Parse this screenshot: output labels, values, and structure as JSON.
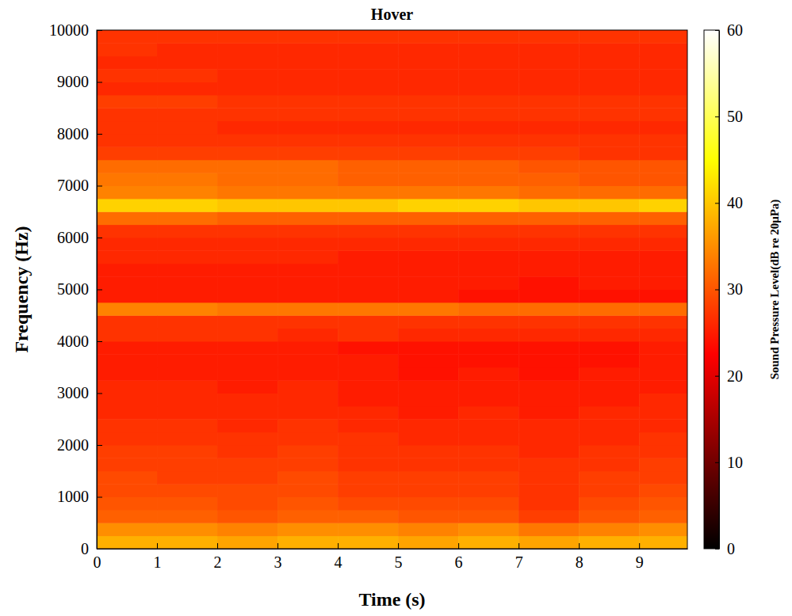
{
  "chart_data": {
    "type": "heatmap",
    "title": "Hover",
    "x_label": "Time (s)",
    "y_label": "Frequency (Hz)",
    "xlim": [
      0,
      9.8
    ],
    "xticks": [
      0,
      1,
      2,
      3,
      4,
      5,
      6,
      7,
      8,
      9
    ],
    "ylim": [
      0,
      10000
    ],
    "yticks": [
      0,
      1000,
      2000,
      3000,
      4000,
      5000,
      6000,
      7000,
      8000,
      9000,
      10000
    ],
    "x_edges": [
      0,
      1,
      2,
      3,
      4,
      5,
      6,
      7,
      8,
      9,
      9.8
    ],
    "y_edges": [
      0,
      250,
      500,
      750,
      1000,
      1250,
      1500,
      1750,
      2000,
      2250,
      2500,
      2750,
      3000,
      3250,
      3500,
      3750,
      4000,
      4250,
      4500,
      4750,
      5000,
      5250,
      5500,
      5750,
      6000,
      6250,
      6500,
      6750,
      7000,
      7250,
      7500,
      7750,
      8000,
      8250,
      8500,
      8750,
      9000,
      9250,
      9500,
      9750,
      10000
    ],
    "values": [
      [
        38,
        38,
        37,
        38,
        38,
        37,
        38,
        37,
        38,
        38
      ],
      [
        35,
        35,
        34,
        35,
        35,
        34,
        35,
        33,
        34,
        35
      ],
      [
        31,
        31,
        30,
        31,
        31,
        30,
        30,
        28,
        30,
        31
      ],
      [
        30,
        30,
        29,
        30,
        29,
        29,
        29,
        27,
        29,
        30
      ],
      [
        29,
        29,
        29,
        29,
        28,
        28,
        28,
        27,
        28,
        29
      ],
      [
        29,
        28,
        28,
        29,
        28,
        28,
        28,
        27,
        28,
        28
      ],
      [
        28,
        28,
        28,
        28,
        27,
        27,
        27,
        27,
        27,
        28
      ],
      [
        28,
        28,
        27,
        28,
        27,
        27,
        27,
        26,
        27,
        27
      ],
      [
        27,
        27,
        27,
        27,
        27,
        26,
        26,
        26,
        26,
        27
      ],
      [
        27,
        27,
        26,
        27,
        26,
        26,
        26,
        26,
        26,
        26
      ],
      [
        26,
        26,
        26,
        26,
        26,
        25,
        26,
        25,
        26,
        26
      ],
      [
        26,
        26,
        26,
        26,
        25,
        25,
        25,
        25,
        25,
        26
      ],
      [
        26,
        26,
        25,
        26,
        25,
        25,
        25,
        25,
        25,
        25
      ],
      [
        25,
        25,
        25,
        25,
        25,
        24,
        25,
        24,
        25,
        25
      ],
      [
        25,
        25,
        25,
        25,
        25,
        24,
        24,
        24,
        24,
        25
      ],
      [
        25,
        25,
        25,
        25,
        24,
        24,
        24,
        24,
        24,
        25
      ],
      [
        27,
        27,
        27,
        26,
        27,
        26,
        26,
        26,
        26,
        26
      ],
      [
        27,
        27,
        27,
        27,
        27,
        27,
        27,
        27,
        27,
        27
      ],
      [
        34,
        34,
        33,
        33,
        33,
        33,
        32,
        32,
        32,
        32
      ],
      [
        25,
        25,
        25,
        25,
        25,
        25,
        24,
        24,
        24,
        24
      ],
      [
        25,
        25,
        25,
        25,
        25,
        25,
        25,
        24,
        25,
        25
      ],
      [
        25,
        25,
        25,
        25,
        25,
        25,
        25,
        25,
        25,
        25
      ],
      [
        26,
        26,
        26,
        26,
        25,
        25,
        25,
        25,
        25,
        25
      ],
      [
        26,
        26,
        26,
        26,
        26,
        26,
        26,
        26,
        26,
        26
      ],
      [
        27,
        27,
        27,
        27,
        27,
        27,
        27,
        27,
        27,
        27
      ],
      [
        32,
        32,
        31,
        31,
        31,
        31,
        31,
        31,
        31,
        31
      ],
      [
        41,
        41,
        40,
        40,
        40,
        41,
        41,
        40,
        40,
        41
      ],
      [
        34,
        34,
        33,
        33,
        33,
        33,
        33,
        32,
        32,
        32
      ],
      [
        33,
        33,
        32,
        32,
        31,
        31,
        31,
        31,
        30,
        30
      ],
      [
        32,
        32,
        32,
        32,
        31,
        31,
        31,
        30,
        30,
        30
      ],
      [
        28,
        28,
        28,
        28,
        28,
        28,
        28,
        28,
        27,
        27
      ],
      [
        27,
        27,
        27,
        27,
        27,
        27,
        27,
        27,
        27,
        27
      ],
      [
        27,
        27,
        26,
        26,
        26,
        26,
        26,
        26,
        26,
        26
      ],
      [
        27,
        27,
        27,
        27,
        27,
        27,
        27,
        27,
        27,
        27
      ],
      [
        28,
        28,
        27,
        27,
        27,
        27,
        27,
        27,
        27,
        27
      ],
      [
        26,
        26,
        26,
        26,
        26,
        26,
        26,
        26,
        26,
        26
      ],
      [
        27,
        27,
        26,
        26,
        26,
        26,
        26,
        26,
        26,
        26
      ],
      [
        26,
        26,
        26,
        26,
        26,
        26,
        26,
        26,
        26,
        26
      ],
      [
        27,
        26,
        26,
        26,
        26,
        26,
        26,
        26,
        26,
        26
      ],
      [
        27,
        27,
        27,
        27,
        27,
        27,
        27,
        27,
        27,
        27
      ]
    ],
    "colorbar_label": "Sound Pressure Level(dB re 20μPa)",
    "color_range": [
      0,
      60
    ],
    "color_ticks": [
      0,
      10,
      20,
      30,
      40,
      50,
      60
    ]
  }
}
